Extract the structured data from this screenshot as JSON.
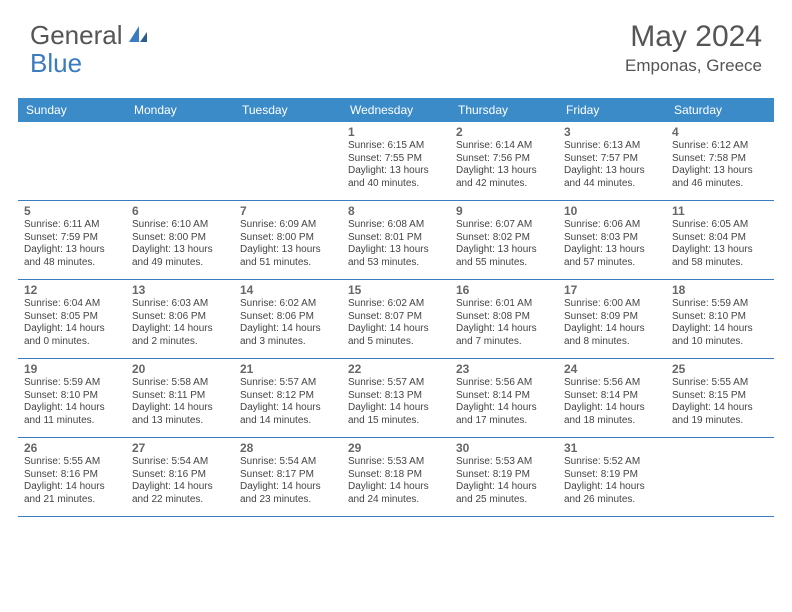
{
  "brand": {
    "word1": "General",
    "word2": "Blue"
  },
  "title": "May 2024",
  "location": "Emponas, Greece",
  "colors": {
    "header_bg": "#3b8bc9",
    "header_text": "#ffffff",
    "border": "#3b7bbf",
    "brand_gray": "#555555",
    "brand_blue": "#3b7bbf",
    "text": "#444444",
    "daynum": "#666666"
  },
  "weekdays": [
    "Sunday",
    "Monday",
    "Tuesday",
    "Wednesday",
    "Thursday",
    "Friday",
    "Saturday"
  ],
  "weeks": [
    [
      null,
      null,
      null,
      {
        "n": "1",
        "sr": "Sunrise: 6:15 AM",
        "ss": "Sunset: 7:55 PM",
        "d1": "Daylight: 13 hours",
        "d2": "and 40 minutes."
      },
      {
        "n": "2",
        "sr": "Sunrise: 6:14 AM",
        "ss": "Sunset: 7:56 PM",
        "d1": "Daylight: 13 hours",
        "d2": "and 42 minutes."
      },
      {
        "n": "3",
        "sr": "Sunrise: 6:13 AM",
        "ss": "Sunset: 7:57 PM",
        "d1": "Daylight: 13 hours",
        "d2": "and 44 minutes."
      },
      {
        "n": "4",
        "sr": "Sunrise: 6:12 AM",
        "ss": "Sunset: 7:58 PM",
        "d1": "Daylight: 13 hours",
        "d2": "and 46 minutes."
      }
    ],
    [
      {
        "n": "5",
        "sr": "Sunrise: 6:11 AM",
        "ss": "Sunset: 7:59 PM",
        "d1": "Daylight: 13 hours",
        "d2": "and 48 minutes."
      },
      {
        "n": "6",
        "sr": "Sunrise: 6:10 AM",
        "ss": "Sunset: 8:00 PM",
        "d1": "Daylight: 13 hours",
        "d2": "and 49 minutes."
      },
      {
        "n": "7",
        "sr": "Sunrise: 6:09 AM",
        "ss": "Sunset: 8:00 PM",
        "d1": "Daylight: 13 hours",
        "d2": "and 51 minutes."
      },
      {
        "n": "8",
        "sr": "Sunrise: 6:08 AM",
        "ss": "Sunset: 8:01 PM",
        "d1": "Daylight: 13 hours",
        "d2": "and 53 minutes."
      },
      {
        "n": "9",
        "sr": "Sunrise: 6:07 AM",
        "ss": "Sunset: 8:02 PM",
        "d1": "Daylight: 13 hours",
        "d2": "and 55 minutes."
      },
      {
        "n": "10",
        "sr": "Sunrise: 6:06 AM",
        "ss": "Sunset: 8:03 PM",
        "d1": "Daylight: 13 hours",
        "d2": "and 57 minutes."
      },
      {
        "n": "11",
        "sr": "Sunrise: 6:05 AM",
        "ss": "Sunset: 8:04 PM",
        "d1": "Daylight: 13 hours",
        "d2": "and 58 minutes."
      }
    ],
    [
      {
        "n": "12",
        "sr": "Sunrise: 6:04 AM",
        "ss": "Sunset: 8:05 PM",
        "d1": "Daylight: 14 hours",
        "d2": "and 0 minutes."
      },
      {
        "n": "13",
        "sr": "Sunrise: 6:03 AM",
        "ss": "Sunset: 8:06 PM",
        "d1": "Daylight: 14 hours",
        "d2": "and 2 minutes."
      },
      {
        "n": "14",
        "sr": "Sunrise: 6:02 AM",
        "ss": "Sunset: 8:06 PM",
        "d1": "Daylight: 14 hours",
        "d2": "and 3 minutes."
      },
      {
        "n": "15",
        "sr": "Sunrise: 6:02 AM",
        "ss": "Sunset: 8:07 PM",
        "d1": "Daylight: 14 hours",
        "d2": "and 5 minutes."
      },
      {
        "n": "16",
        "sr": "Sunrise: 6:01 AM",
        "ss": "Sunset: 8:08 PM",
        "d1": "Daylight: 14 hours",
        "d2": "and 7 minutes."
      },
      {
        "n": "17",
        "sr": "Sunrise: 6:00 AM",
        "ss": "Sunset: 8:09 PM",
        "d1": "Daylight: 14 hours",
        "d2": "and 8 minutes."
      },
      {
        "n": "18",
        "sr": "Sunrise: 5:59 AM",
        "ss": "Sunset: 8:10 PM",
        "d1": "Daylight: 14 hours",
        "d2": "and 10 minutes."
      }
    ],
    [
      {
        "n": "19",
        "sr": "Sunrise: 5:59 AM",
        "ss": "Sunset: 8:10 PM",
        "d1": "Daylight: 14 hours",
        "d2": "and 11 minutes."
      },
      {
        "n": "20",
        "sr": "Sunrise: 5:58 AM",
        "ss": "Sunset: 8:11 PM",
        "d1": "Daylight: 14 hours",
        "d2": "and 13 minutes."
      },
      {
        "n": "21",
        "sr": "Sunrise: 5:57 AM",
        "ss": "Sunset: 8:12 PM",
        "d1": "Daylight: 14 hours",
        "d2": "and 14 minutes."
      },
      {
        "n": "22",
        "sr": "Sunrise: 5:57 AM",
        "ss": "Sunset: 8:13 PM",
        "d1": "Daylight: 14 hours",
        "d2": "and 15 minutes."
      },
      {
        "n": "23",
        "sr": "Sunrise: 5:56 AM",
        "ss": "Sunset: 8:14 PM",
        "d1": "Daylight: 14 hours",
        "d2": "and 17 minutes."
      },
      {
        "n": "24",
        "sr": "Sunrise: 5:56 AM",
        "ss": "Sunset: 8:14 PM",
        "d1": "Daylight: 14 hours",
        "d2": "and 18 minutes."
      },
      {
        "n": "25",
        "sr": "Sunrise: 5:55 AM",
        "ss": "Sunset: 8:15 PM",
        "d1": "Daylight: 14 hours",
        "d2": "and 19 minutes."
      }
    ],
    [
      {
        "n": "26",
        "sr": "Sunrise: 5:55 AM",
        "ss": "Sunset: 8:16 PM",
        "d1": "Daylight: 14 hours",
        "d2": "and 21 minutes."
      },
      {
        "n": "27",
        "sr": "Sunrise: 5:54 AM",
        "ss": "Sunset: 8:16 PM",
        "d1": "Daylight: 14 hours",
        "d2": "and 22 minutes."
      },
      {
        "n": "28",
        "sr": "Sunrise: 5:54 AM",
        "ss": "Sunset: 8:17 PM",
        "d1": "Daylight: 14 hours",
        "d2": "and 23 minutes."
      },
      {
        "n": "29",
        "sr": "Sunrise: 5:53 AM",
        "ss": "Sunset: 8:18 PM",
        "d1": "Daylight: 14 hours",
        "d2": "and 24 minutes."
      },
      {
        "n": "30",
        "sr": "Sunrise: 5:53 AM",
        "ss": "Sunset: 8:19 PM",
        "d1": "Daylight: 14 hours",
        "d2": "and 25 minutes."
      },
      {
        "n": "31",
        "sr": "Sunrise: 5:52 AM",
        "ss": "Sunset: 8:19 PM",
        "d1": "Daylight: 14 hours",
        "d2": "and 26 minutes."
      },
      null
    ]
  ]
}
